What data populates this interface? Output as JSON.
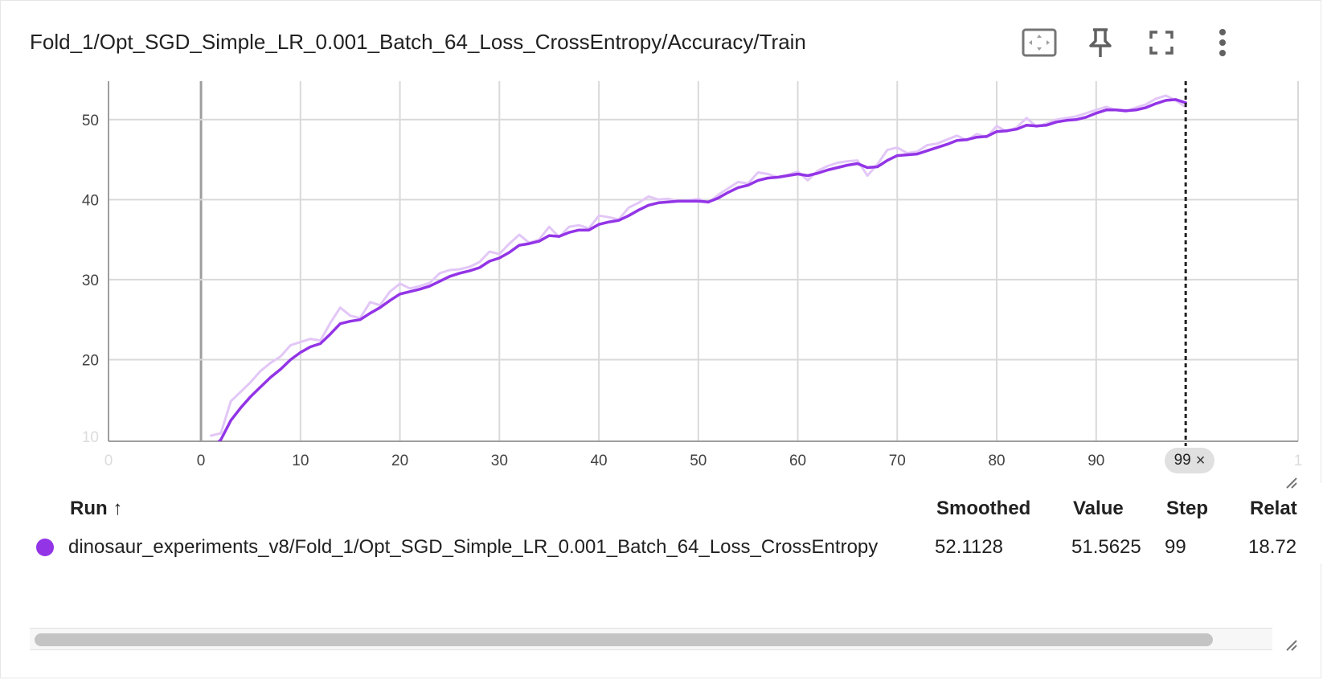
{
  "card": {
    "title": "Fold_1/Opt_SGD_Simple_LR_0.001_Batch_64_Loss_CrossEntropy/Accuracy/Train"
  },
  "toolbar": {
    "fit_icon": "fit-to-data-icon",
    "pin_icon": "pin-icon",
    "fullscreen_icon": "fullscreen-icon",
    "menu_icon": "more-vert-icon"
  },
  "colors": {
    "smoothed": "#9334e6",
    "raw": "#e2c7f7",
    "grid": "#d9d9d9",
    "axis": "#9e9e9e",
    "cursor": "#212121"
  },
  "step_chip": {
    "value": "99",
    "close": "×"
  },
  "table": {
    "headers": {
      "run": "Run",
      "sort_icon": "↑",
      "smoothed": "Smoothed",
      "value": "Value",
      "step": "Step",
      "relative": "Relat"
    },
    "rows": [
      {
        "run": "dinosaur_experiments_v8/Fold_1/Opt_SGD_Simple_LR_0.001_Batch_64_Loss_CrossEntropy",
        "smoothed": "52.1128",
        "value": "51.5625",
        "step": "99",
        "relative": "18.72"
      }
    ]
  },
  "chart_data": {
    "type": "line",
    "title": "Fold_1/Opt_SGD_Simple_LR_0.001_Batch_64_Loss_CrossEntropy/Accuracy/Train",
    "xlabel": "",
    "ylabel": "",
    "xlim": [
      -9.3,
      110.3
    ],
    "ylim": [
      9.8,
      54.8
    ],
    "x_ticks": [
      0,
      10,
      20,
      30,
      40,
      50,
      60,
      70,
      80,
      90
    ],
    "x_ticks_faded": [
      {
        "pos": -9.3,
        "label": "0"
      },
      {
        "pos": 110.3,
        "label": "1"
      }
    ],
    "y_ticks": [
      20,
      30,
      40,
      50
    ],
    "y_ticks_faded": [
      {
        "pos": 10,
        "label": "10"
      }
    ],
    "grid": true,
    "cursor_step": 99,
    "series": [
      {
        "role": "raw",
        "x": [
          1,
          2,
          3,
          4,
          5,
          6,
          7,
          8,
          9,
          10,
          11,
          12,
          13,
          14,
          15,
          16,
          17,
          18,
          19,
          20,
          21,
          22,
          23,
          24,
          25,
          26,
          27,
          28,
          29,
          30,
          31,
          32,
          33,
          34,
          35,
          36,
          37,
          38,
          39,
          40,
          41,
          42,
          43,
          44,
          45,
          46,
          47,
          48,
          49,
          50,
          51,
          52,
          53,
          54,
          55,
          56,
          57,
          58,
          59,
          60,
          61,
          62,
          63,
          64,
          65,
          66,
          67,
          68,
          69,
          70,
          71,
          72,
          73,
          74,
          75,
          76,
          77,
          78,
          79,
          80,
          81,
          82,
          83,
          84,
          85,
          86,
          87,
          88,
          89,
          90,
          91,
          92,
          93,
          94,
          95,
          96,
          97,
          98,
          99
        ],
        "values": [
          10.5,
          10.8,
          14.8,
          16.0,
          17.2,
          18.6,
          19.6,
          20.4,
          21.8,
          22.2,
          22.6,
          22.4,
          24.6,
          26.5,
          25.5,
          25.2,
          27.2,
          26.8,
          28.5,
          29.5,
          28.9,
          29.2,
          29.6,
          30.8,
          31.2,
          31.3,
          31.6,
          32.2,
          33.5,
          33.2,
          34.5,
          35.6,
          34.6,
          35.0,
          36.6,
          35.3,
          36.6,
          36.8,
          36.4,
          38.0,
          37.8,
          37.5,
          39.0,
          39.6,
          40.4,
          40.0,
          40.1,
          39.8,
          39.9,
          40.1,
          39.6,
          40.6,
          41.4,
          42.2,
          42.0,
          43.4,
          43.2,
          42.8,
          43.1,
          43.5,
          42.4,
          43.6,
          44.2,
          44.6,
          44.8,
          44.9,
          43.0,
          44.4,
          46.2,
          46.5,
          45.8,
          46.0,
          46.8,
          47.0,
          47.5,
          48.0,
          47.4,
          48.2,
          47.8,
          49.2,
          48.5,
          49.0,
          50.2,
          49.1,
          49.5,
          50.0,
          50.2,
          50.4,
          50.8,
          51.2,
          51.6,
          51.2,
          51.0,
          51.5,
          51.9,
          52.6,
          53.0,
          52.4,
          51.5625
        ]
      },
      {
        "role": "smoothed",
        "x": [
          1,
          2,
          3,
          4,
          5,
          6,
          7,
          8,
          9,
          10,
          11,
          12,
          13,
          14,
          15,
          16,
          17,
          18,
          19,
          20,
          21,
          22,
          23,
          24,
          25,
          26,
          27,
          28,
          29,
          30,
          31,
          32,
          33,
          34,
          35,
          36,
          37,
          38,
          39,
          40,
          41,
          42,
          43,
          44,
          45,
          46,
          47,
          48,
          49,
          50,
          51,
          52,
          53,
          54,
          55,
          56,
          57,
          58,
          59,
          60,
          61,
          62,
          63,
          64,
          65,
          66,
          67,
          68,
          69,
          70,
          71,
          72,
          73,
          74,
          75,
          76,
          77,
          78,
          79,
          80,
          81,
          82,
          83,
          84,
          85,
          86,
          87,
          88,
          89,
          90,
          91,
          92,
          93,
          94,
          95,
          96,
          97,
          98,
          99
        ],
        "values": [
          8.8,
          10.0,
          12.4,
          14.0,
          15.4,
          16.6,
          17.8,
          18.8,
          20.0,
          20.9,
          21.6,
          22.0,
          23.2,
          24.5,
          24.8,
          25.0,
          25.8,
          26.5,
          27.4,
          28.2,
          28.5,
          28.8,
          29.2,
          29.8,
          30.4,
          30.8,
          31.1,
          31.5,
          32.3,
          32.7,
          33.4,
          34.3,
          34.5,
          34.8,
          35.5,
          35.4,
          35.9,
          36.2,
          36.2,
          36.9,
          37.2,
          37.4,
          38.0,
          38.7,
          39.3,
          39.6,
          39.7,
          39.8,
          39.8,
          39.8,
          39.7,
          40.2,
          40.9,
          41.5,
          41.8,
          42.4,
          42.7,
          42.8,
          43.0,
          43.2,
          43.0,
          43.3,
          43.7,
          44.0,
          44.3,
          44.5,
          44.0,
          44.1,
          44.9,
          45.5,
          45.6,
          45.7,
          46.1,
          46.5,
          46.9,
          47.4,
          47.5,
          47.8,
          47.9,
          48.5,
          48.6,
          48.8,
          49.3,
          49.2,
          49.3,
          49.7,
          49.9,
          50.0,
          50.3,
          50.8,
          51.2,
          51.2,
          51.1,
          51.2,
          51.5,
          52.0,
          52.4,
          52.5,
          52.1128
        ]
      }
    ]
  }
}
